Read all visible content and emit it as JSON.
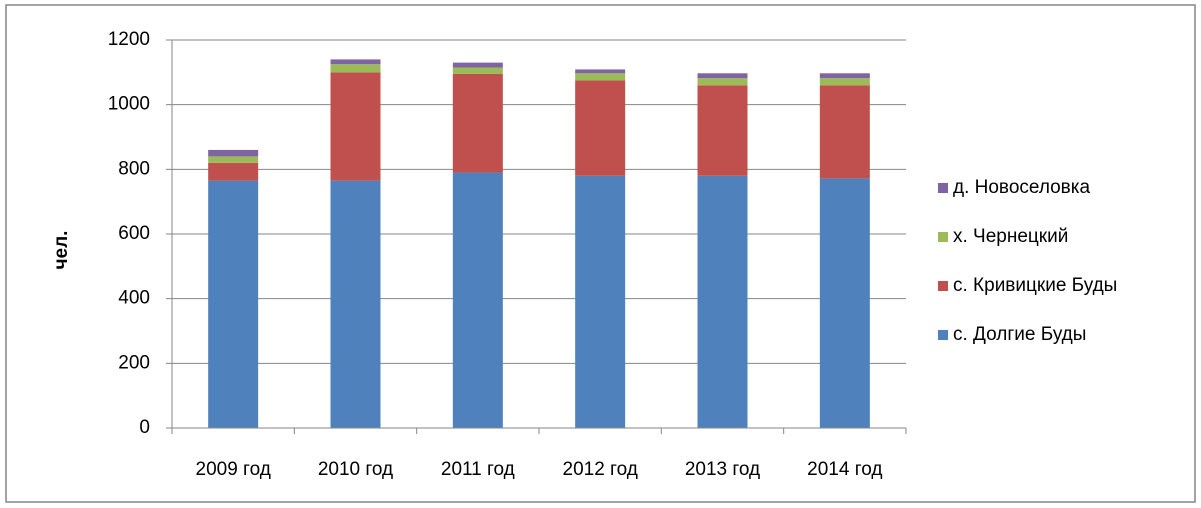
{
  "chart_data": {
    "type": "stacked_bar",
    "y_axis_label": "чел.",
    "categories": [
      "2009 год",
      "2010 год",
      "2011 год",
      "2012 год",
      "2013 год",
      "2014 год"
    ],
    "series": [
      {
        "name": "с. Долгие Буды",
        "color": "#4f81bd",
        "values": [
          765,
          765,
          790,
          780,
          780,
          772
        ]
      },
      {
        "name": "с. Кривицкие Буды",
        "color": "#c0504d",
        "values": [
          55,
          335,
          305,
          295,
          280,
          288
        ]
      },
      {
        "name": "х. Чернецкий",
        "color": "#9bbb59",
        "values": [
          20,
          25,
          20,
          22,
          22,
          22
        ]
      },
      {
        "name": "д. Новоселовка",
        "color": "#8064a2",
        "values": [
          20,
          15,
          15,
          12,
          15,
          15
        ]
      }
    ],
    "ylim": [
      0,
      1200
    ],
    "yticks": [
      0,
      200,
      400,
      600,
      800,
      1000,
      1200
    ],
    "grid": true,
    "legend": "right"
  }
}
